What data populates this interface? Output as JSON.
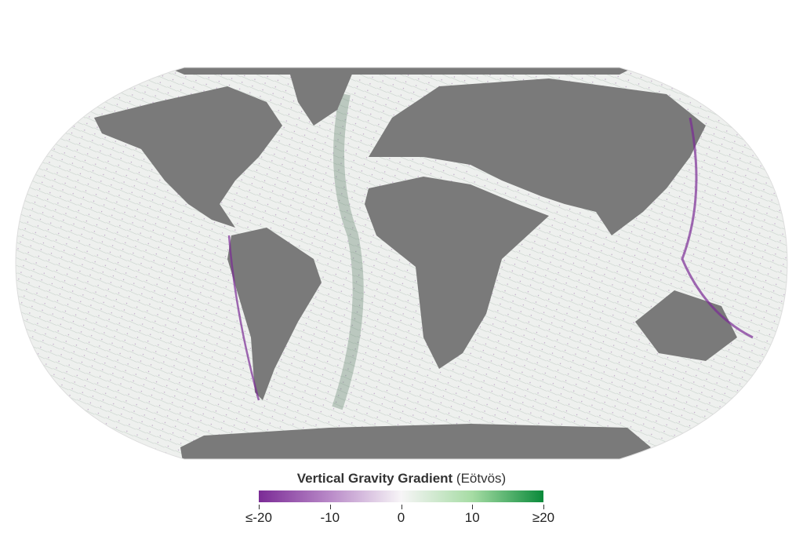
{
  "legend": {
    "title_bold": "Vertical Gravity Gradient",
    "title_unit": "(Eötvös)",
    "ticks": [
      "≤-20",
      "-10",
      "0",
      "10",
      "≥20"
    ],
    "colors": [
      "#7b2b96",
      "#b98ac8",
      "#f7f5f7",
      "#a6dca4",
      "#0a8a3a"
    ]
  },
  "map": {
    "land_color": "#7a7a7a",
    "ocean_color": "#eef0ee",
    "negative_color": "#7b2b96",
    "positive_color": "#2e7d4a"
  }
}
